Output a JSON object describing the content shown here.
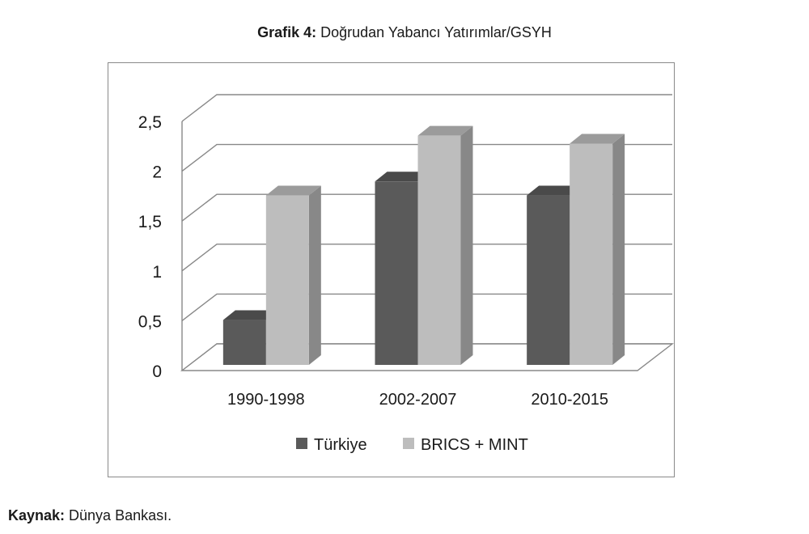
{
  "figure": {
    "title_prefix": "Grafik 4:",
    "title_text": " Doğrudan Yabancı Yatırımlar/GSYH",
    "source_prefix": "Kaynak:",
    "source_text": " Dünya Bankası."
  },
  "chart_data": {
    "type": "bar",
    "title": "Grafik 4: Doğrudan Yabancı Yatırımlar/GSYH",
    "xlabel": "",
    "ylabel": "",
    "categories": [
      "1990-1998",
      "2002-2007",
      "2010-2015"
    ],
    "series": [
      {
        "name": "Türkiye",
        "values": [
          0.45,
          1.84,
          1.7
        ],
        "color": "#5a5a5a"
      },
      {
        "name": "BRICS + MINT",
        "values": [
          1.7,
          2.3,
          2.22
        ],
        "color": "#bdbdbd"
      }
    ],
    "ylim": [
      0,
      2.5
    ],
    "yticks": [
      "0",
      "0,5",
      "1",
      "1,5",
      "2",
      "2,5"
    ],
    "grid": true,
    "legend": "bottom",
    "style": "3d-clustered-column"
  }
}
